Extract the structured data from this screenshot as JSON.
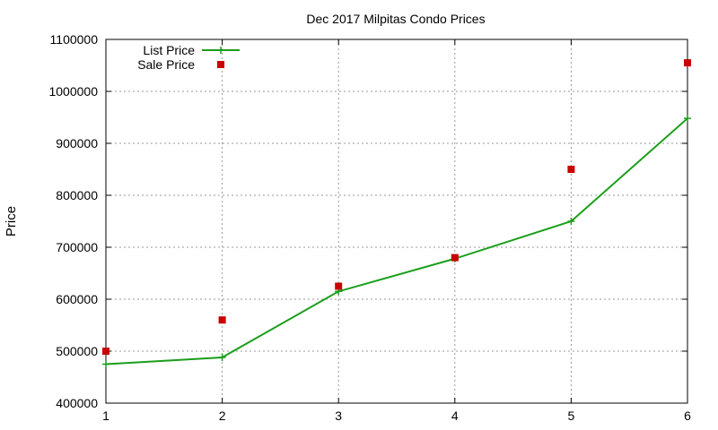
{
  "chart_data": {
    "type": "line",
    "title": "Dec 2017 Milpitas Condo Prices",
    "xlabel": "",
    "ylabel": "Price",
    "x": [
      1,
      2,
      3,
      4,
      5,
      6
    ],
    "xlim": [
      1,
      6
    ],
    "ylim": [
      400000,
      1100000
    ],
    "xticks": [
      1,
      2,
      3,
      4,
      5,
      6
    ],
    "yticks": [
      400000,
      500000,
      600000,
      700000,
      800000,
      900000,
      1000000,
      1100000
    ],
    "grid": true,
    "legend_position": "top-left",
    "series": [
      {
        "name": "List Price",
        "style": "line+crosses",
        "color": "#1a9e1a",
        "values": [
          475000,
          488000,
          615000,
          678000,
          750000,
          948000
        ]
      },
      {
        "name": "Sale Price",
        "style": "squares",
        "color": "#c80000",
        "values": [
          500000,
          560000,
          625000,
          680000,
          850000,
          1055000
        ]
      }
    ]
  }
}
